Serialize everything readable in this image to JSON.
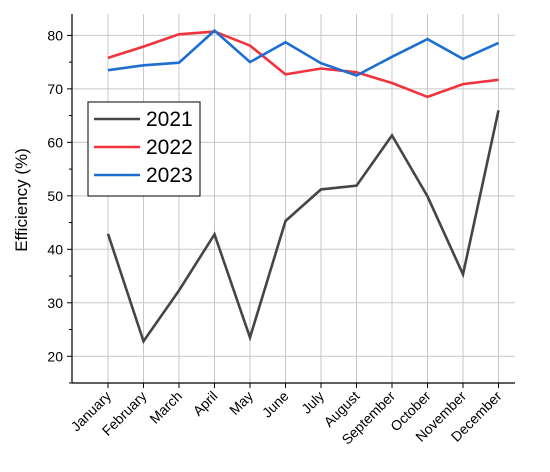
{
  "chart_data": {
    "type": "line",
    "title": "",
    "xlabel": "",
    "ylabel": "Efficiency (%)",
    "categories": [
      "January",
      "February",
      "March",
      "April",
      "May",
      "June",
      "July",
      "August",
      "September",
      "October",
      "November",
      "December"
    ],
    "ylim": [
      15,
      84
    ],
    "yticks": [
      20,
      30,
      40,
      50,
      60,
      70,
      80
    ],
    "grid": true,
    "legend": {
      "placement": "top-left"
    },
    "series": [
      {
        "name": "2021",
        "color": "#454545",
        "values": [
          42.9,
          22.8,
          32.3,
          42.8,
          23.5,
          45.3,
          51.2,
          51.9,
          61.3,
          49.9,
          35.3,
          66.0
        ]
      },
      {
        "name": "2022",
        "color": "#f0333c",
        "values": [
          75.8,
          77.9,
          80.2,
          80.7,
          78.1,
          72.7,
          73.8,
          73.1,
          71.1,
          68.5,
          70.9,
          71.7
        ]
      },
      {
        "name": "2023",
        "color": "#1c6fd1",
        "values": [
          73.5,
          74.4,
          74.9,
          80.9,
          75.0,
          78.7,
          74.8,
          72.5,
          76.0,
          79.3,
          75.6,
          78.6
        ]
      }
    ]
  }
}
